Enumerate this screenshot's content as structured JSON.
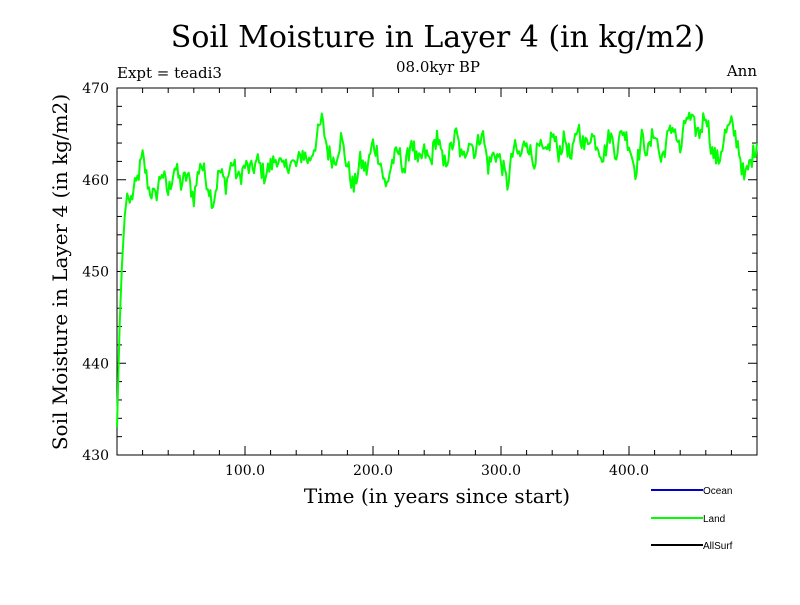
{
  "chart_data": {
    "type": "line",
    "title": "Soil Moisture in Layer 4 (in kg/m2)",
    "subtitle": "08.0kyr BP",
    "expt_label": "Expt = teadi3",
    "season_label": "Ann",
    "xlabel": "Time (in years since start)",
    "ylabel": "Soil Moisture in Layer 4 (in kg/m2)",
    "xlim": [
      0,
      500
    ],
    "ylim": [
      430,
      470
    ],
    "x_ticks": [
      100,
      200,
      300,
      400
    ],
    "x_tick_labels": [
      "100.0",
      "200.0",
      "300.0",
      "400.0"
    ],
    "y_ticks": [
      430,
      440,
      450,
      460,
      470
    ],
    "y_tick_labels": [
      "430",
      "440",
      "450",
      "460",
      "470"
    ],
    "legend": [
      {
        "name": "Ocean",
        "color": "#0000cc"
      },
      {
        "name": "Land",
        "color": "#00ff00"
      },
      {
        "name": "AllSurf",
        "color": "#000000"
      }
    ],
    "series": [
      {
        "name": "Land",
        "color": "#00ff00",
        "x": [
          0,
          2,
          4,
          6,
          8,
          10,
          15,
          20,
          25,
          30,
          35,
          40,
          45,
          50,
          55,
          60,
          65,
          70,
          75,
          80,
          85,
          90,
          95,
          100,
          105,
          110,
          115,
          120,
          125,
          130,
          135,
          140,
          145,
          150,
          155,
          160,
          165,
          170,
          175,
          180,
          185,
          190,
          195,
          200,
          205,
          210,
          215,
          220,
          225,
          230,
          235,
          240,
          245,
          250,
          255,
          260,
          265,
          270,
          275,
          280,
          285,
          290,
          295,
          300,
          305,
          310,
          315,
          320,
          325,
          330,
          335,
          340,
          345,
          350,
          355,
          360,
          365,
          370,
          375,
          380,
          385,
          390,
          395,
          400,
          405,
          410,
          415,
          420,
          425,
          430,
          435,
          440,
          445,
          450,
          455,
          460,
          465,
          470,
          475,
          480,
          485,
          490,
          495,
          500
        ],
        "values": [
          433,
          444,
          451,
          456,
          458.5,
          457.5,
          459.5,
          462.5,
          459,
          458,
          461,
          458.5,
          461.5,
          459.5,
          460.5,
          458,
          462,
          460,
          457.5,
          461,
          459.5,
          462,
          460,
          461.5,
          461,
          462,
          460.5,
          461.5,
          462.5,
          461,
          462,
          461.5,
          463,
          462,
          464,
          466.5,
          463,
          462,
          464.5,
          461.5,
          459,
          462,
          461,
          464,
          462.5,
          459,
          462,
          463,
          461,
          464.5,
          461.5,
          463,
          462,
          465,
          461.5,
          463,
          465,
          462,
          464.5,
          463,
          465.5,
          461.5,
          463,
          462,
          459.5,
          463.5,
          462.5,
          464.5,
          462,
          463.5,
          462.5,
          465,
          463,
          464.5,
          462,
          466,
          463.5,
          465,
          464,
          462.5,
          465,
          463,
          465.5,
          464,
          461,
          464.5,
          463,
          465.5,
          462,
          464.5,
          466,
          463,
          467,
          466,
          465,
          467.5,
          463,
          462,
          465,
          466,
          464,
          460,
          462,
          464
        ]
      }
    ]
  }
}
